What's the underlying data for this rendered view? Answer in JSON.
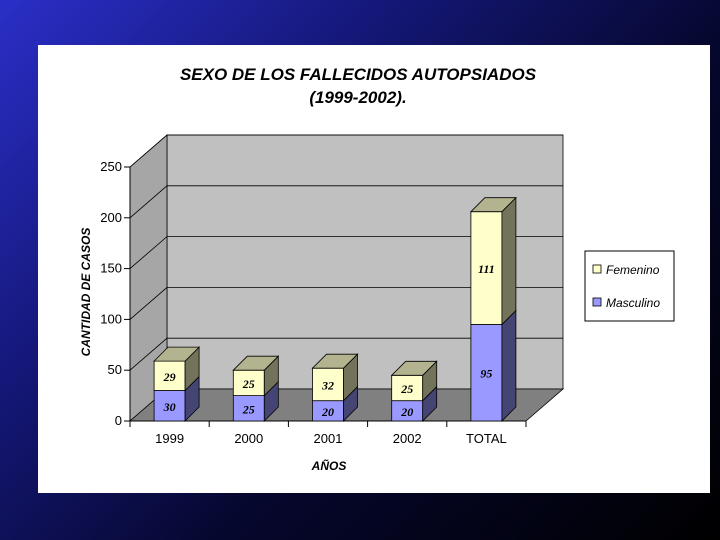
{
  "chart_data": {
    "type": "bar",
    "stacked": true,
    "three_d": true,
    "title": "SEXO DE LOS FALLECIDOS AUTOPSIADOS",
    "subtitle": "(1999-2002).",
    "xlabel": "AÑOS",
    "ylabel": "CANTIDAD DE CASOS",
    "ylim": [
      0,
      250
    ],
    "yticks": [
      "0",
      "50",
      "100",
      "150",
      "200",
      "250"
    ],
    "categories": [
      "1999",
      "2000",
      "2001",
      "2002",
      "TOTAL"
    ],
    "series": [
      {
        "name": "Masculino",
        "values": [
          30,
          25,
          20,
          20,
          95
        ],
        "labels": [
          "30",
          "25",
          "20",
          "20",
          "95"
        ],
        "color": "#9999ff"
      },
      {
        "name": "Femenino",
        "values": [
          29,
          25,
          32,
          25,
          111
        ],
        "labels": [
          "29",
          "25",
          "32",
          "25",
          "111"
        ],
        "color": "#ffffcc"
      }
    ],
    "legend": {
      "position": "right",
      "items": [
        "Femenino",
        "Masculino"
      ]
    },
    "grid": true,
    "wall_color": "#c0c0c0",
    "floor_color": "#808080"
  }
}
